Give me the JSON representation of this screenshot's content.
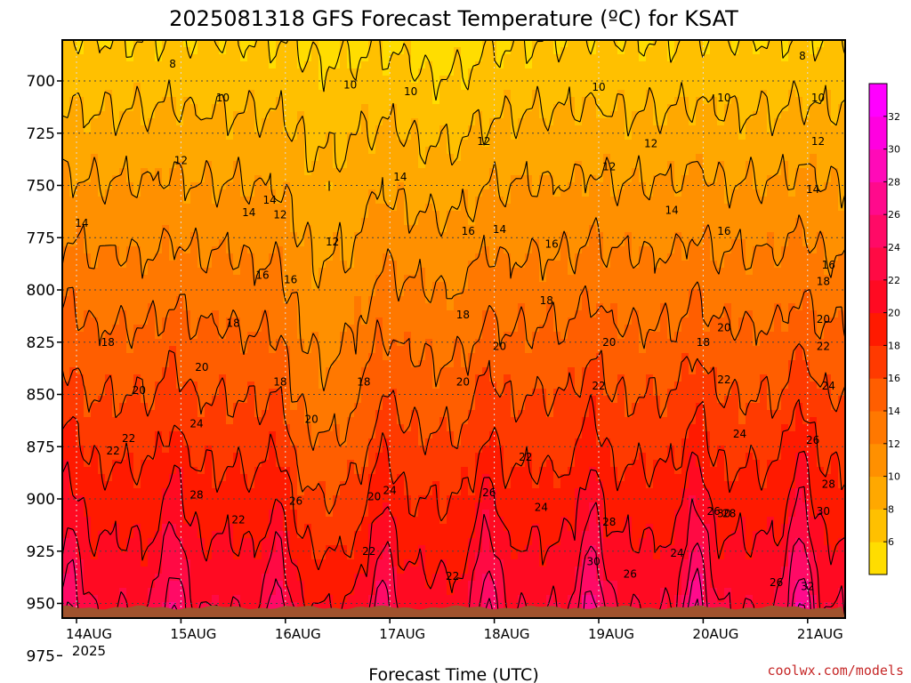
{
  "chart_data": {
    "type": "heatmap",
    "title": "2025081318 GFS Forecast Temperature (ºC) for KSAT",
    "xlabel": "Forecast Time (UTC)",
    "ylabel": "",
    "x_ticks": [
      "14AUG",
      "15AUG",
      "16AUG",
      "17AUG",
      "18AUG",
      "19AUG",
      "20AUG",
      "21AUG"
    ],
    "x_year": "2025",
    "y_axis": "pressure_hPa",
    "y_ticks": [
      700,
      725,
      750,
      775,
      800,
      825,
      850,
      875,
      900,
      925,
      950,
      975
    ],
    "ylim": [
      1000,
      680
    ],
    "grid": true,
    "colorbar": {
      "labels": [
        6,
        8,
        10,
        12,
        14,
        16,
        18,
        20,
        22,
        24,
        26,
        28,
        30,
        32
      ],
      "colors": [
        "#ffdd00",
        "#ffc000",
        "#ffa800",
        "#ff9000",
        "#ff7800",
        "#ff5e00",
        "#ff3a00",
        "#ff1a00",
        "#ff0a22",
        "#ff0a44",
        "#ff0a66",
        "#ff0a8c",
        "#ff0ab8",
        "#ff00e0",
        "#ff00ff"
      ]
    },
    "contour_interval": 2,
    "contour_labels": [
      {
        "day": 0.92,
        "p": 692,
        "v": 8
      },
      {
        "day": 1.4,
        "p": 708,
        "v": 10
      },
      {
        "day": 1.0,
        "p": 738,
        "v": 12
      },
      {
        "day": 0.05,
        "p": 768,
        "v": 14
      },
      {
        "day": 1.65,
        "p": 763,
        "v": 14
      },
      {
        "day": 1.85,
        "p": 757,
        "v": 14
      },
      {
        "day": 1.95,
        "p": 764,
        "v": 12
      },
      {
        "day": 2.62,
        "p": 702,
        "v": 10
      },
      {
        "day": 2.45,
        "p": 777,
        "v": 12
      },
      {
        "day": 1.78,
        "p": 793,
        "v": 16
      },
      {
        "day": 2.05,
        "p": 795,
        "v": 16
      },
      {
        "day": 1.5,
        "p": 816,
        "v": 18
      },
      {
        "day": 0.3,
        "p": 825,
        "v": 18
      },
      {
        "day": 1.2,
        "p": 837,
        "v": 20
      },
      {
        "day": 0.6,
        "p": 848,
        "v": 20
      },
      {
        "day": 0.5,
        "p": 871,
        "v": 22
      },
      {
        "day": 1.15,
        "p": 864,
        "v": 24
      },
      {
        "day": 0.35,
        "p": 877,
        "v": 22
      },
      {
        "day": 1.15,
        "p": 898,
        "v": 28
      },
      {
        "day": 1.55,
        "p": 910,
        "v": 22
      },
      {
        "day": 1.05,
        "p": 973,
        "v": 24
      },
      {
        "day": 2.1,
        "p": 901,
        "v": 26
      },
      {
        "day": 1.95,
        "p": 844,
        "v": 18
      },
      {
        "day": 2.25,
        "p": 862,
        "v": 20
      },
      {
        "day": 2.85,
        "p": 899,
        "v": 20
      },
      {
        "day": 2.75,
        "p": 844,
        "v": 18
      },
      {
        "day": 3.2,
        "p": 705,
        "v": 10
      },
      {
        "day": 3.1,
        "p": 746,
        "v": 14
      },
      {
        "day": 3.9,
        "p": 729,
        "v": 12
      },
      {
        "day": 3.75,
        "p": 772,
        "v": 16
      },
      {
        "day": 4.05,
        "p": 771,
        "v": 14
      },
      {
        "day": 3.7,
        "p": 812,
        "v": 18
      },
      {
        "day": 3.7,
        "p": 844,
        "v": 20
      },
      {
        "day": 4.05,
        "p": 827,
        "v": 20
      },
      {
        "day": 4.3,
        "p": 880,
        "v": 22
      },
      {
        "day": 3.95,
        "p": 897,
        "v": 26
      },
      {
        "day": 4.45,
        "p": 904,
        "v": 24
      },
      {
        "day": 2.8,
        "p": 925,
        "v": 22
      },
      {
        "day": 3.0,
        "p": 896,
        "v": 24
      },
      {
        "day": 3.6,
        "p": 937,
        "v": 22
      },
      {
        "day": 2.95,
        "p": 979,
        "v": 28
      },
      {
        "day": 5.0,
        "p": 703,
        "v": 10
      },
      {
        "day": 5.1,
        "p": 741,
        "v": 12
      },
      {
        "day": 4.55,
        "p": 778,
        "v": 16
      },
      {
        "day": 4.5,
        "p": 805,
        "v": 18
      },
      {
        "day": 5.1,
        "p": 825,
        "v": 20
      },
      {
        "day": 5.0,
        "p": 846,
        "v": 22
      },
      {
        "day": 5.1,
        "p": 911,
        "v": 28
      },
      {
        "day": 4.95,
        "p": 930,
        "v": 30
      },
      {
        "day": 5.3,
        "p": 936,
        "v": 26
      },
      {
        "day": 5.5,
        "p": 730,
        "v": 12
      },
      {
        "day": 6.2,
        "p": 708,
        "v": 10
      },
      {
        "day": 6.95,
        "p": 688,
        "v": 8
      },
      {
        "day": 5.7,
        "p": 762,
        "v": 14
      },
      {
        "day": 6.2,
        "p": 772,
        "v": 16
      },
      {
        "day": 6.2,
        "p": 818,
        "v": 20
      },
      {
        "day": 6.0,
        "p": 825,
        "v": 18
      },
      {
        "day": 6.2,
        "p": 843,
        "v": 22
      },
      {
        "day": 6.35,
        "p": 869,
        "v": 24
      },
      {
        "day": 6.25,
        "p": 907,
        "v": 28
      },
      {
        "day": 6.2,
        "p": 907,
        "v": 30
      },
      {
        "day": 6.1,
        "p": 906,
        "v": 26
      },
      {
        "day": 5.75,
        "p": 926,
        "v": 24
      },
      {
        "day": 6.7,
        "p": 940,
        "v": 26
      },
      {
        "day": 5.75,
        "p": 978,
        "v": 28
      },
      {
        "day": 7.1,
        "p": 708,
        "v": 10
      },
      {
        "day": 7.1,
        "p": 729,
        "v": 12
      },
      {
        "day": 7.05,
        "p": 752,
        "v": 14
      },
      {
        "day": 7.15,
        "p": 796,
        "v": 18
      },
      {
        "day": 7.2,
        "p": 788,
        "v": 16
      },
      {
        "day": 7.15,
        "p": 814,
        "v": 20
      },
      {
        "day": 7.15,
        "p": 827,
        "v": 22
      },
      {
        "day": 7.2,
        "p": 846,
        "v": 24
      },
      {
        "day": 7.05,
        "p": 872,
        "v": 26
      },
      {
        "day": 7.2,
        "p": 893,
        "v": 28
      },
      {
        "day": 7.15,
        "p": 906,
        "v": 30
      },
      {
        "day": 7.45,
        "p": 901,
        "v": 26
      },
      {
        "day": 7.0,
        "p": 942,
        "v": 32
      }
    ]
  },
  "credit": "coolwx.com/models"
}
